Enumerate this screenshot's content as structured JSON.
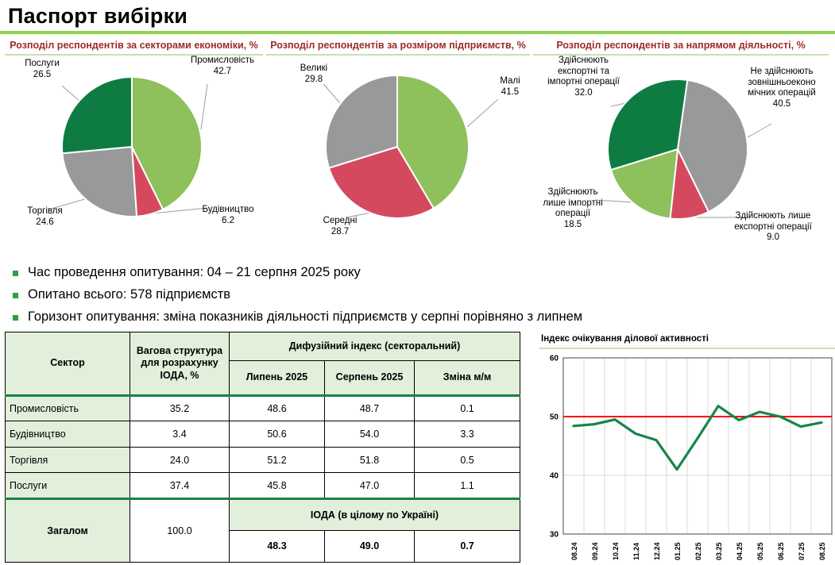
{
  "title": "Паспорт вибірки",
  "bullets": [
    "Час проведення опитування: 04 – 21 серпня 2025 року",
    "Опитано всього: 578 підприємств",
    "Горизонт опитування: зміна показників діяльності підприємств у серпні порівняно з липнем"
  ],
  "colors": {
    "light_green": "#8ec05c",
    "dark_green": "#0e7c42",
    "gray": "#97999b",
    "red": "#d5495f",
    "accent_green": "#92d050",
    "rule_green": "#c5e0b4",
    "table_header_bg": "#e2efda",
    "table_green_line": "#1a8048",
    "chart_title_red": "#9e2b2b",
    "line_green": "#17854a",
    "ref_line_red": "#ff0000",
    "gridline_gray": "#d9d9d9",
    "plot_border_gray": "#8c8c8c"
  },
  "chart_data": [
    {
      "type": "pie",
      "title": "Розподіл респондентів за секторами економіки, %",
      "start_angle": 0,
      "slices": [
        {
          "label": "Промисловість",
          "value": "42.7",
          "color_key": "light_green"
        },
        {
          "label": "Будівництво",
          "value": "6.2",
          "color_key": "red"
        },
        {
          "label": "Торгівля",
          "value": "24.6",
          "color_key": "gray"
        },
        {
          "label": "Послуги",
          "value": "26.5",
          "color_key": "dark_green"
        }
      ]
    },
    {
      "type": "pie",
      "title": "Розподіл респондентів за розміром підприємств, %",
      "start_angle": 0,
      "slices": [
        {
          "label": "Малі",
          "value": "41.5",
          "color_key": "light_green"
        },
        {
          "label": "Середні",
          "value": "28.7",
          "color_key": "red"
        },
        {
          "label": "Великі",
          "value": "29.8",
          "color_key": "gray"
        }
      ]
    },
    {
      "type": "pie",
      "title": "Розподіл респондентів за напрямом діяльності, %",
      "start_angle": 8,
      "slices": [
        {
          "label": "Не здійснюють\nзовнішньоеконо\nмічних операцій",
          "value": "40.5",
          "color_key": "gray"
        },
        {
          "label": "Здійснюють лише\nекспортні операції",
          "value": "9.0",
          "color_key": "red"
        },
        {
          "label": "Здійснюють\nлише імпортні\nоперації",
          "value": "18.5",
          "color_key": "light_green"
        },
        {
          "label": "Здійснюють\nекспортні та\nімпортні операції",
          "value": "32.0",
          "color_key": "dark_green"
        }
      ]
    },
    {
      "type": "line",
      "title": "Індекс очікування ділової активності",
      "x": [
        "08.24",
        "09.24",
        "10.24",
        "11.24",
        "12.24",
        "01.25",
        "02.25",
        "03.25",
        "04.25",
        "05.25",
        "06.25",
        "07.25",
        "08.25"
      ],
      "values": [
        48.4,
        48.7,
        49.5,
        47.1,
        46.0,
        41.0,
        46.3,
        51.8,
        49.4,
        50.8,
        50.0,
        48.3,
        49.0
      ],
      "ylim": [
        30,
        60
      ],
      "yticks": [
        30,
        40,
        50,
        60
      ],
      "reference_line": 50,
      "grid": true,
      "legend": "none"
    }
  ],
  "table": {
    "header": {
      "sector": "Сектор",
      "weight": "Вагова структура для розрахунку ІОДА, %",
      "diffusion": "Дифузійний індекс (секторальний)",
      "cols": [
        "Липень 2025",
        "Серпень 2025",
        "Зміна м/м"
      ]
    },
    "rows": [
      [
        "Промисловість",
        "35.2",
        "48.6",
        "48.7",
        "0.1"
      ],
      [
        "Будівництво",
        "3.4",
        "50.6",
        "54.0",
        "3.3"
      ],
      [
        "Торгівля",
        "24.0",
        "51.2",
        "51.8",
        "0.5"
      ],
      [
        "Послуги",
        "37.4",
        "45.8",
        "47.0",
        "1.1"
      ]
    ],
    "footer": {
      "label": "Загалом",
      "weight": "100.0",
      "ioda_title": "ІОДА (в цілому по Україні)",
      "values": [
        "48.3",
        "49.0",
        "0.7"
      ]
    }
  }
}
